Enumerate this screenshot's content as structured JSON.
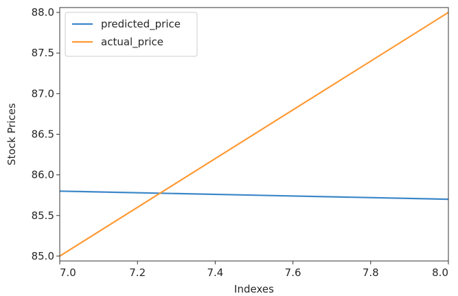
{
  "chart_data": {
    "type": "line",
    "title": "",
    "xlabel": "Indexes",
    "ylabel": "Stock Prices",
    "xlim": [
      7.0,
      8.0
    ],
    "ylim": [
      84.94,
      88.06
    ],
    "x_ticks": [
      "7.0",
      "7.2",
      "7.4",
      "7.6",
      "7.8",
      "8.0"
    ],
    "y_ticks": [
      "85.0",
      "85.5",
      "86.0",
      "86.5",
      "87.0",
      "87.5",
      "88.0"
    ],
    "grid": false,
    "legend_position": "top-left",
    "series": [
      {
        "name": "predicted_price",
        "color": "#3a86c8",
        "x": [
          7,
          8
        ],
        "y": [
          85.8,
          85.7
        ]
      },
      {
        "name": "actual_price",
        "color": "#ff9933",
        "x": [
          7,
          8
        ],
        "y": [
          85.0,
          88.0
        ]
      }
    ]
  }
}
